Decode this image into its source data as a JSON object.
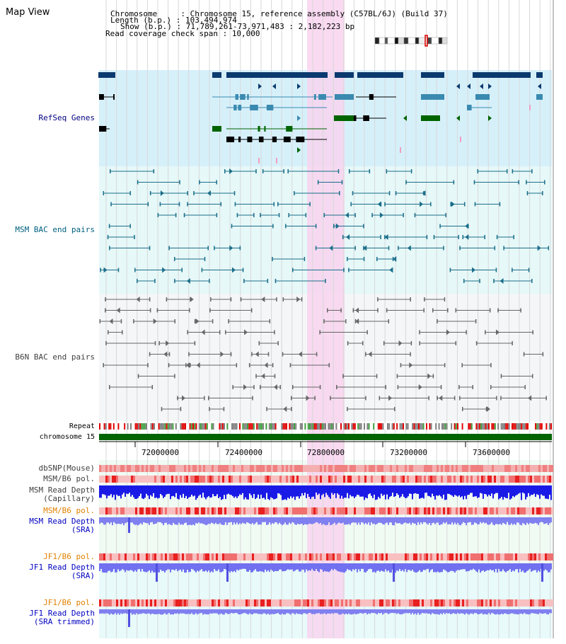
{
  "title": "Map View",
  "header": {
    "chromosome_label": "Chromosome     : ",
    "chromosome_value": "Chromosome 15, reference assembly (C57BL/6J) (Build 37)",
    "length_label": "Length (b.p.) : ",
    "length_value": "103,494,974",
    "show_label": "Show (b.p.) : ",
    "show_value": "71,789,261-73,971,483 : 2,182,223 bp",
    "span_label": "Read coverage check span : ",
    "span_value": "10,000"
  },
  "tracks": {
    "refseq": "RefSeq Genes",
    "msm_bac": "MSM BAC end pairs",
    "b6n_bac": "B6N BAC end pairs",
    "repeat": "Repeat",
    "chromosome": "chromosome 15",
    "dbsnp": "dbSNP(Mouse)",
    "msm_b6_pol_1": "MSM/B6 pol.",
    "msm_read_depth_cap_1": "MSM Read Depth",
    "msm_read_depth_cap_2": "(Capillary)",
    "msm_b6_pol_2": "MSM/B6 pol.",
    "msm_read_depth_sra_1": "MSM Read Depth",
    "msm_read_depth_sra_2": "(SRA)",
    "jf1_b6_pol_1": "JF1/B6 pol.",
    "jf1_read_depth_sra_1": "JF1 Read Depth",
    "jf1_read_depth_sra_2": "(SRA)",
    "jf1_b6_pol_2": "JF1/B6 pol.",
    "jf1_read_depth_trim_1": "JF1 Read Depth",
    "jf1_read_depth_trim_2": "(SRA trimmed)"
  },
  "axis": {
    "ticks": [
      "72000000",
      "72400000",
      "72800000",
      "73200000",
      "73600000"
    ]
  },
  "colors": {
    "refseq_bg": "#d6f0fa",
    "msm_bac_bg": "#e6f8f8",
    "b6n_bac_bg": "#f4f6f8",
    "highlight": "#f8d4ee",
    "gene_dark": "#0b3a6e",
    "gene_mid": "#3a8ab0",
    "gene_green": "#006400",
    "msm_line": "#1a6e8a",
    "b6n_line": "#666666",
    "chromosome_bar": "#006400",
    "label_dark_blue": "#000080",
    "label_teal": "#006080",
    "label_orange": "#e08000",
    "label_blue": "#0000c0",
    "label_gray": "#404040"
  }
}
